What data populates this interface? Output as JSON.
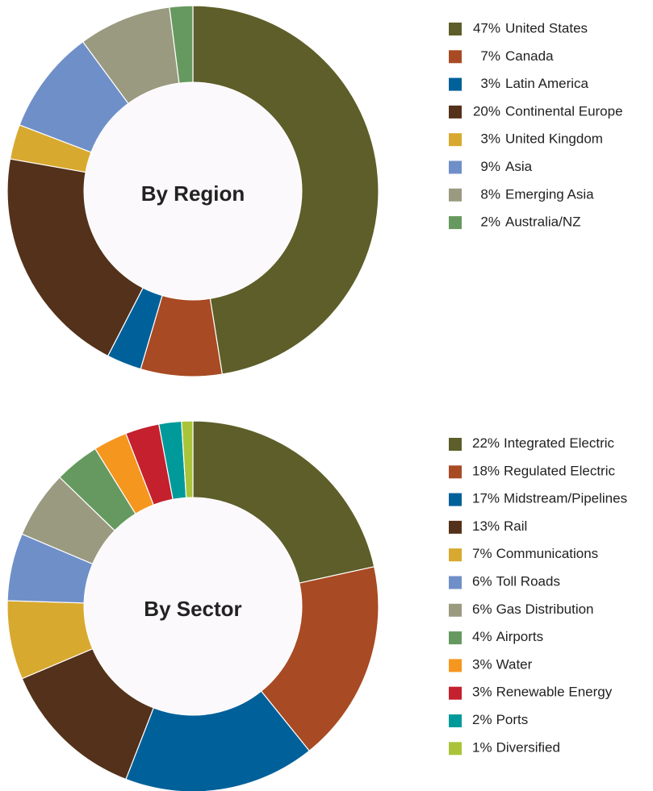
{
  "chart_data": [
    {
      "type": "pie",
      "title": "By Region",
      "categories": [
        "United States",
        "Canada",
        "Latin America",
        "Continental Europe",
        "United Kingdom",
        "Asia",
        "Emerging Asia",
        "Australia/NZ"
      ],
      "values": [
        47,
        7,
        3,
        20,
        3,
        9,
        8,
        2
      ],
      "value_labels": [
        "47%",
        "7%",
        "3%",
        "20%",
        "3%",
        "9%",
        "8%",
        "2%"
      ],
      "colors": [
        "#5d5e29",
        "#a84a23",
        "#00609a",
        "#54311a",
        "#d8a92f",
        "#6f8fc8",
        "#9a9a80",
        "#66995f"
      ]
    },
    {
      "type": "pie",
      "title": "By Sector",
      "categories": [
        "Integrated Electric",
        "Regulated Electric",
        "Midstream/Pipelines",
        "Rail",
        "Communications",
        "Toll Roads",
        "Gas Distribution",
        "Airports",
        "Water",
        "Renewable Energy",
        "Ports",
        "Diversified"
      ],
      "values": [
        22,
        18,
        17,
        13,
        7,
        6,
        6,
        4,
        3,
        3,
        2,
        1
      ],
      "value_labels": [
        "22%",
        "18%",
        "17%",
        "13%",
        "7%",
        "6%",
        "6%",
        "4%",
        "3%",
        "3%",
        "2%",
        "1%"
      ],
      "colors": [
        "#5d5e29",
        "#a84a23",
        "#00609a",
        "#54311a",
        "#d8a92f",
        "#6f8fc8",
        "#9a9a80",
        "#66995f",
        "#f5961e",
        "#c4202d",
        "#009a9a",
        "#a9c43a"
      ]
    }
  ]
}
